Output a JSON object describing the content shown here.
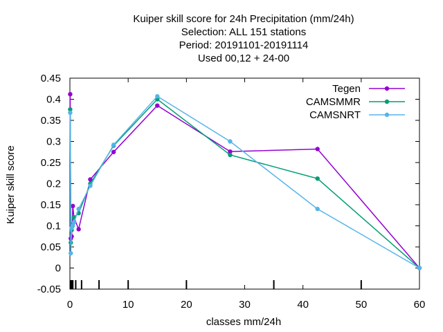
{
  "chart_data": {
    "type": "line",
    "title_lines": [
      "Kuiper skill score  for 24h Precipitation (mm/24h)",
      "Selection: ALL    151 stations",
      "Period: 20191101-20191114",
      "Used  00,12  + 24-00"
    ],
    "xlabel": "classes mm/24h",
    "ylabel": "Kuiper skill score",
    "xlim": [
      0,
      60
    ],
    "ylim": [
      -0.05,
      0.45
    ],
    "x_ticks": [
      0,
      10,
      20,
      30,
      40,
      50,
      60
    ],
    "y_ticks": [
      -0.05,
      0,
      0.05,
      0.1,
      0.15,
      0.2,
      0.25,
      0.3,
      0.35,
      0.4,
      0.45
    ],
    "y_tick_labels": [
      "-0.05",
      "0",
      "0.05",
      "0.1",
      "0.15",
      "0.2",
      "0.25",
      "0.3",
      "0.35",
      "0.4",
      "0.45"
    ],
    "class_marks": [
      0.1,
      0.3,
      0.5,
      1,
      2,
      5,
      10,
      20,
      35,
      50
    ],
    "grid": false,
    "legend_position": "top-right",
    "series": [
      {
        "name": "Tegen",
        "color": "#9400d3",
        "x": [
          0.05,
          0.15,
          0.3,
          0.5,
          0.7,
          1.5,
          3.5,
          7.5,
          15,
          27.5,
          42.5,
          60
        ],
        "y": [
          0.412,
          0.07,
          0.075,
          0.147,
          0.12,
          0.092,
          0.21,
          0.275,
          0.385,
          0.276,
          0.282,
          0.0
        ]
      },
      {
        "name": "CAMSMMR",
        "color": "#009e73",
        "x": [
          0.05,
          0.15,
          0.3,
          0.5,
          0.7,
          1.5,
          3.5,
          7.5,
          15,
          27.5,
          42.5,
          60
        ],
        "y": [
          0.376,
          0.06,
          0.09,
          0.105,
          0.12,
          0.13,
          0.2,
          0.29,
          0.4,
          0.268,
          0.212,
          0.0
        ]
      },
      {
        "name": "CAMSNRT",
        "color": "#56b4e9",
        "x": [
          0.05,
          0.15,
          0.3,
          0.5,
          0.7,
          1.5,
          3.5,
          7.5,
          15,
          27.5,
          42.5,
          60
        ],
        "y": [
          0.368,
          0.035,
          0.095,
          0.1,
          0.108,
          0.14,
          0.195,
          0.292,
          0.407,
          0.3,
          0.14,
          0.0
        ]
      }
    ]
  }
}
